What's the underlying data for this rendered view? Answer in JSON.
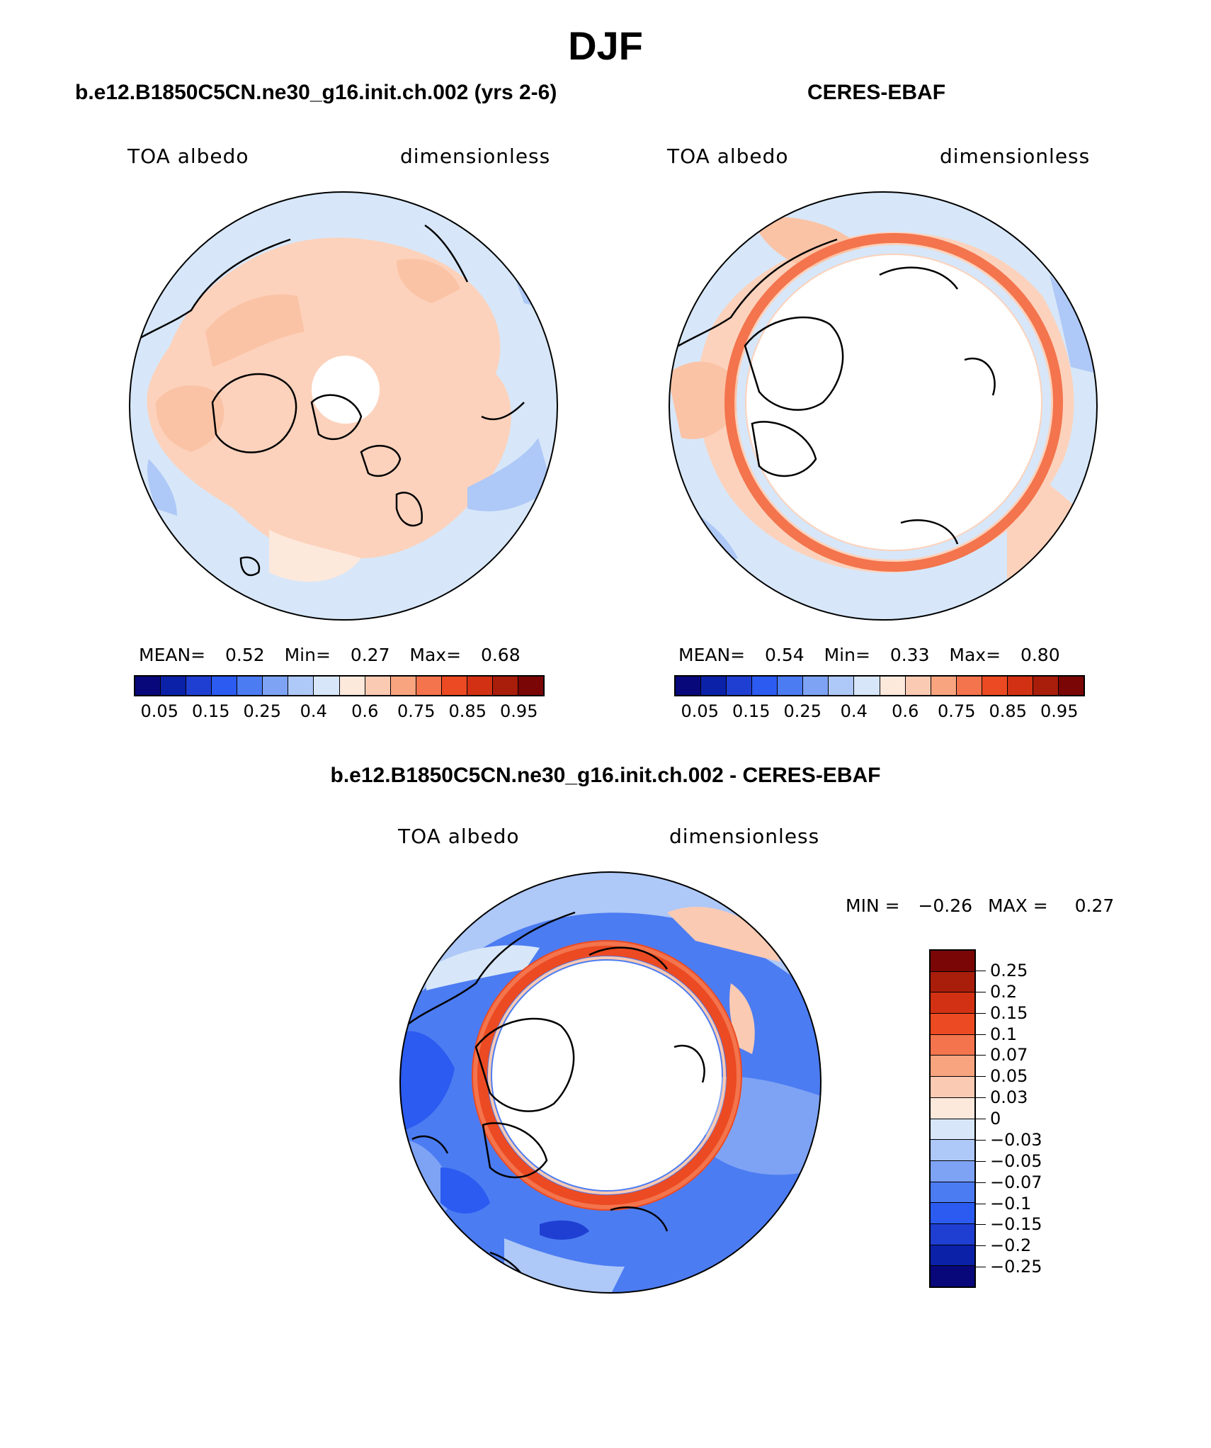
{
  "season_title": "DJF",
  "panels": {
    "model": {
      "title": "b.e12.B1850C5CN.ne30_g16.init.ch.002 (yrs 2-6)",
      "variable": "TOA albedo",
      "units": "dimensionless",
      "stats": {
        "mean_label": "MEAN=",
        "mean": "0.52",
        "min_label": "Min=",
        "min": "0.27",
        "max_label": "Max=",
        "max": "0.68"
      }
    },
    "obs": {
      "title": "CERES-EBAF",
      "variable": "TOA albedo",
      "units": "dimensionless",
      "stats": {
        "mean_label": "MEAN=",
        "mean": "0.54",
        "min_label": "Min=",
        "min": "0.33",
        "max_label": "Max=",
        "max": "0.80"
      }
    },
    "diff": {
      "title": "b.e12.B1850C5CN.ne30_g16.init.ch.002 - CERES-EBAF",
      "variable": "TOA albedo",
      "units": "dimensionless",
      "stats": {
        "min_label": "MIN =",
        "min": "−0.26",
        "max_label": "MAX =",
        "max": "0.27"
      }
    }
  },
  "colorbars": {
    "albedo": {
      "colors": [
        "#08087a",
        "#0a21a8",
        "#1f3fd2",
        "#2b5bf0",
        "#4c7cf2",
        "#7ea3f4",
        "#aec8f7",
        "#d7e7f9",
        "#fde8dc",
        "#fbcab3",
        "#f8a47f",
        "#f3744d",
        "#ec4a22",
        "#d23213",
        "#a91d0b",
        "#7a0606"
      ],
      "ticks": [
        "0.05",
        "0.15",
        "0.25",
        "0.4",
        "0.6",
        "0.75",
        "0.85",
        "0.95"
      ]
    },
    "diff": {
      "colors": [
        "#7a0606",
        "#a91d0b",
        "#d23213",
        "#ec4a22",
        "#f3744d",
        "#f8a47f",
        "#fbcab3",
        "#fde8dc",
        "#d7e7f9",
        "#aec8f7",
        "#7ea3f4",
        "#4c7cf2",
        "#2b5bf0",
        "#1f3fd2",
        "#0a21a8",
        "#08087a"
      ],
      "ticks": [
        "0.25",
        "0.2",
        "0.15",
        "0.1",
        "0.07",
        "0.05",
        "0.03",
        "0",
        "−0.03",
        "−0.05",
        "−0.07",
        "−0.1",
        "−0.15",
        "−0.2",
        "−0.25"
      ]
    }
  }
}
